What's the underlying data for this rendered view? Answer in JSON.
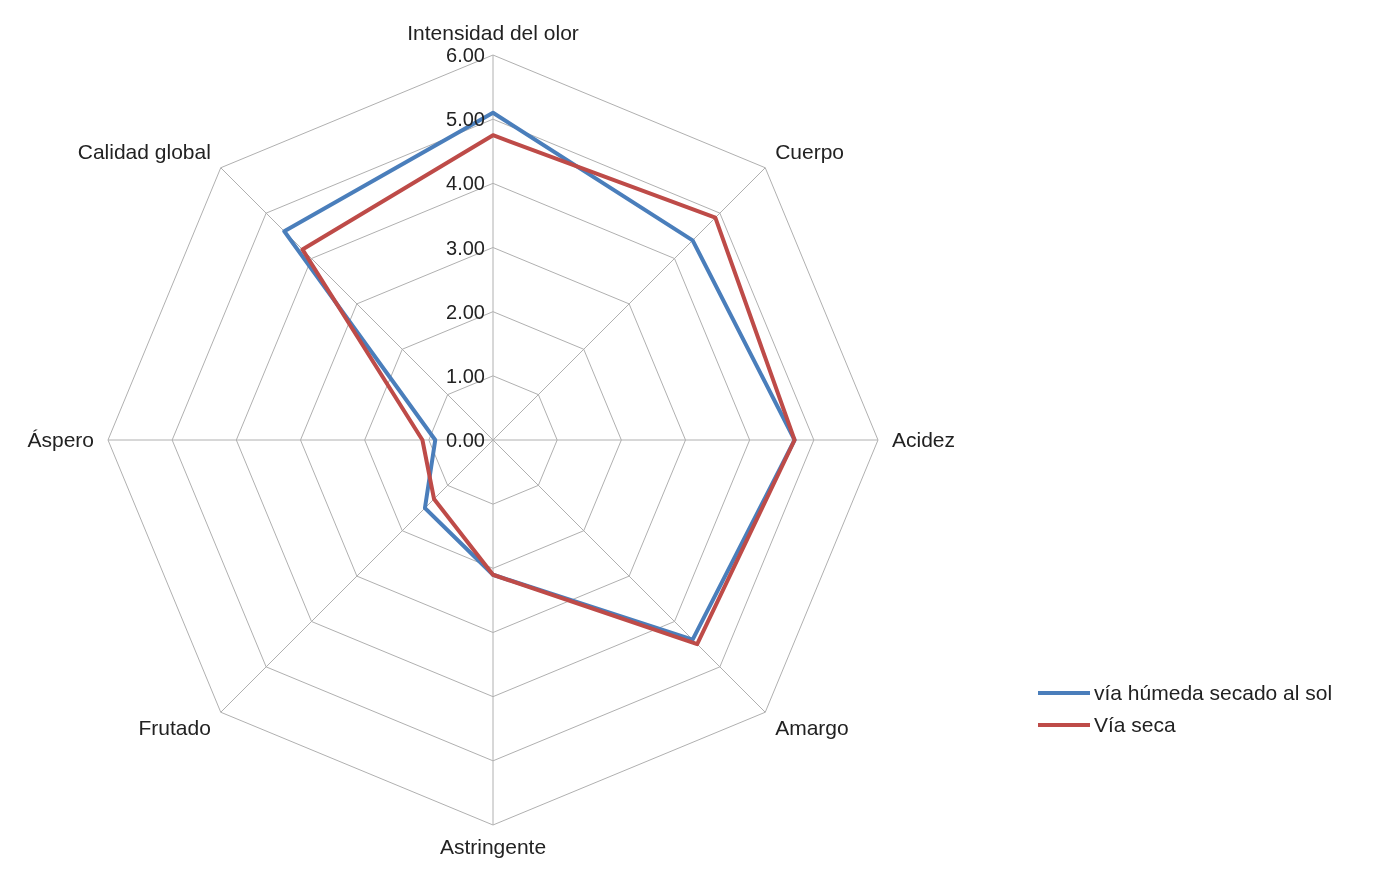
{
  "chart_data": {
    "type": "radar",
    "categories": [
      "Intensidad del olor",
      "Cuerpo",
      "Acidez",
      "Amargo",
      "Astringente",
      "Frutado",
      "Áspero",
      "Calidad global"
    ],
    "ylim": [
      0,
      6
    ],
    "yticks": [
      {
        "value": 0,
        "label": "0.00"
      },
      {
        "value": 1,
        "label": "1.00"
      },
      {
        "value": 2,
        "label": "2.00"
      },
      {
        "value": 3,
        "label": "3.00"
      },
      {
        "value": 4,
        "label": "4.00"
      },
      {
        "value": 5,
        "label": "5.00"
      },
      {
        "value": 6,
        "label": "6.00"
      }
    ],
    "grid": true,
    "legend": "right",
    "series": [
      {
        "name": "vía húmeda secado al sol",
        "color": "#4a7ebb",
        "values": [
          5.1,
          4.4,
          4.7,
          4.4,
          2.1,
          1.5,
          0.9,
          4.6
        ]
      },
      {
        "name": "Vía seca",
        "color": "#be4b48",
        "values": [
          4.75,
          4.9,
          4.7,
          4.5,
          2.1,
          1.3,
          1.1,
          4.2
        ]
      }
    ]
  }
}
